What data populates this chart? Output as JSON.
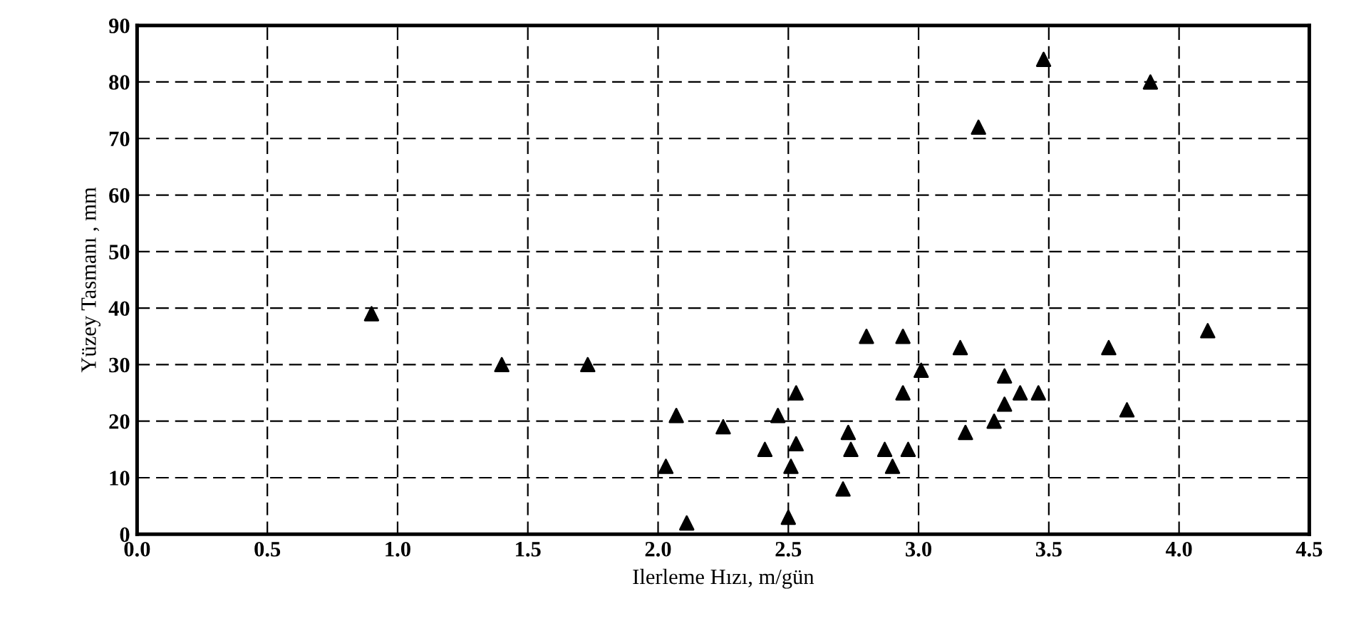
{
  "chart_data": {
    "type": "scatter",
    "xlabel": "Ilerleme Hızı, m/gün",
    "ylabel": "Yüzey Tasmanı , mm",
    "xlim": [
      0,
      4.5
    ],
    "ylim": [
      0,
      90
    ],
    "xticks": [
      {
        "value": 0,
        "label": "0.0"
      },
      0.5,
      {
        "value": 1,
        "label": "1.0"
      },
      1.5,
      {
        "value": 2,
        "label": "2.0"
      },
      2.5,
      {
        "value": 3,
        "label": "3.0"
      },
      3.5,
      {
        "value": 4,
        "label": "4.0"
      },
      4.5
    ],
    "yticks": [
      0,
      10,
      20,
      30,
      40,
      50,
      60,
      70,
      80,
      90
    ],
    "grid": true,
    "marker": "triangle",
    "series": [
      {
        "color": "#000000",
        "x": [
          0.9,
          1.4,
          1.73,
          2.03,
          2.07,
          2.11,
          2.25,
          2.41,
          2.46,
          2.5,
          2.51,
          2.53,
          2.53,
          2.71,
          2.73,
          2.74,
          2.8,
          2.87,
          2.9,
          2.94,
          2.94,
          2.96,
          3.01,
          3.16,
          3.18,
          3.23,
          3.29,
          3.33,
          3.33,
          3.39,
          3.46,
          3.48,
          3.73,
          3.8,
          3.89,
          4.11
        ],
        "values": [
          39,
          30,
          30,
          12,
          21,
          2,
          19,
          15,
          21,
          3,
          12,
          16,
          25,
          8,
          18,
          15,
          35,
          15,
          12,
          25,
          35,
          15,
          29,
          33,
          18,
          72,
          20,
          23,
          28,
          25,
          25,
          84,
          33,
          22,
          80,
          36
        ]
      }
    ]
  }
}
